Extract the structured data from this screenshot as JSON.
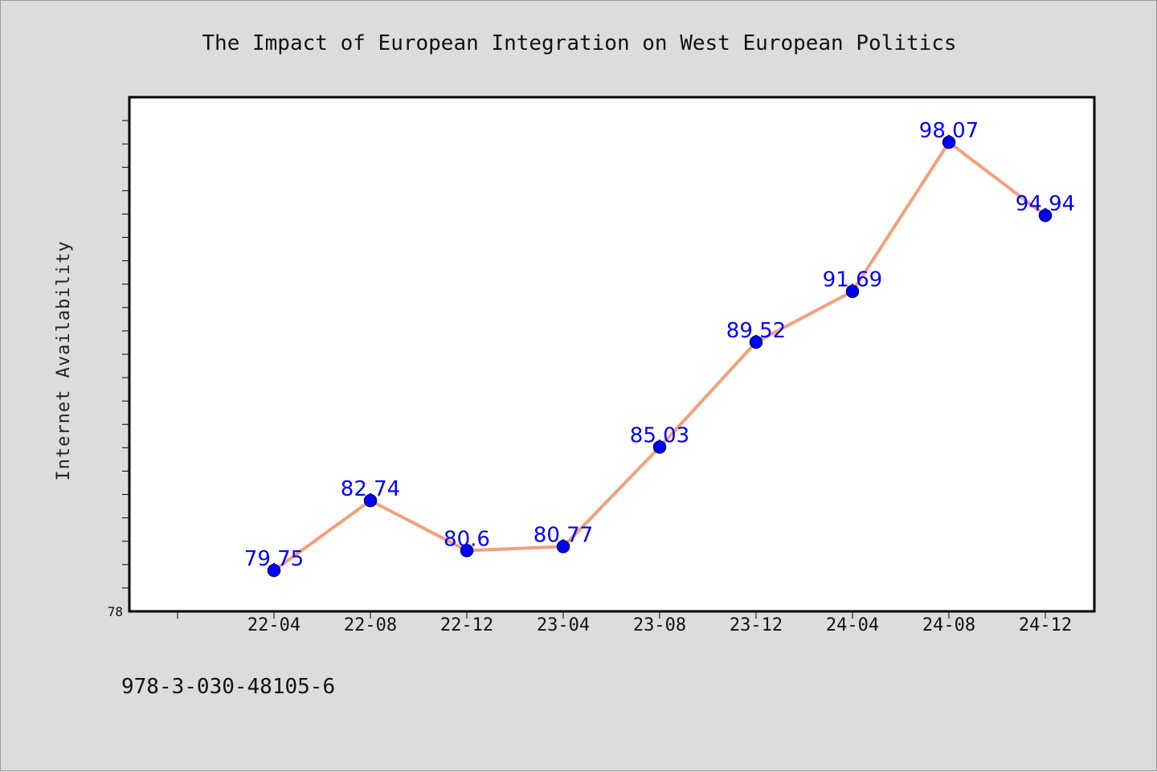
{
  "chart_data": {
    "type": "line",
    "title": "The Impact of European Integration on West European Politics",
    "xlabel": "",
    "ylabel": "Internet Availability",
    "categories": [
      "22-04",
      "22-08",
      "22-12",
      "23-04",
      "23-08",
      "23-12",
      "24-04",
      "24-08",
      "24-12"
    ],
    "series": [
      {
        "values": [
          79.75,
          82.74,
          80.6,
          80.77,
          85.03,
          89.52,
          91.69,
          98.07,
          94.94
        ],
        "labels": [
          "79.75",
          "82.74",
          "80.6",
          "80.77",
          "85.03",
          "89.52",
          "91.69",
          "98.07",
          "94.94"
        ]
      }
    ],
    "ylim": [
      78,
      100
    ],
    "y_tick_labels": [
      "78"
    ],
    "grid": false,
    "colors": {
      "line": "#f4a07a",
      "marker": "#0000ff",
      "marker_edge": "#000080",
      "data_label": "#0000ff",
      "plot_background": "#ffffff",
      "figure_background": "#dcdcdc"
    }
  },
  "footer_text": "978-3-030-48105-6"
}
